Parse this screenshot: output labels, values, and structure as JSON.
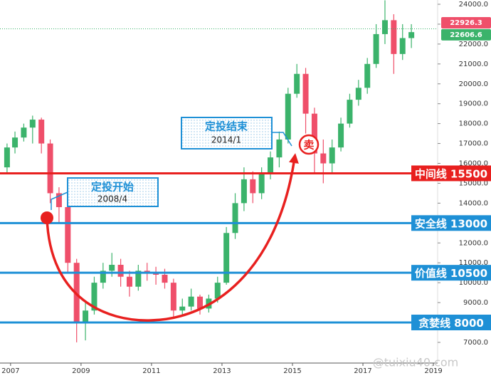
{
  "chart_data": {
    "type": "candlestick",
    "x": [
      2006.9,
      2007.125,
      2007.375,
      2007.625,
      2007.875,
      2008.125,
      2008.375,
      2008.625,
      2008.875,
      2009.125,
      2009.375,
      2009.625,
      2009.875,
      2010.125,
      2010.375,
      2010.625,
      2010.875,
      2011.125,
      2011.375,
      2011.625,
      2011.875,
      2012.125,
      2012.375,
      2012.625,
      2012.875,
      2013.125,
      2013.375,
      2013.625,
      2013.875,
      2014.125,
      2014.375,
      2014.625,
      2014.875,
      2015.125,
      2015.375,
      2015.625,
      2015.875,
      2016.125,
      2016.375,
      2016.625,
      2016.875,
      2017.125,
      2017.375,
      2017.625,
      2017.875,
      2018.125,
      2018.375
    ],
    "open": [
      15800,
      16800,
      17300,
      17800,
      18200,
      17000,
      14500,
      13800,
      11000,
      8000,
      8600,
      10000,
      10600,
      10900,
      10300,
      9800,
      10600,
      10500,
      10400,
      10000,
      8600,
      8800,
      9300,
      8700,
      9200,
      10000,
      12500,
      14000,
      15200,
      14500,
      15500,
      16300,
      17200,
      19500,
      20500,
      18500,
      16500,
      16000,
      16800,
      18000,
      19200,
      19800,
      21000,
      22500,
      23200,
      21500,
      22300
    ],
    "high": [
      17000,
      17600,
      18000,
      18400,
      18300,
      17200,
      14800,
      14000,
      11200,
      9000,
      10300,
      11000,
      11500,
      11200,
      10600,
      10900,
      11000,
      10800,
      10700,
      10200,
      9200,
      9700,
      9400,
      9400,
      10300,
      12800,
      14500,
      15800,
      15600,
      15800,
      16600,
      17600,
      19800,
      21000,
      20800,
      18800,
      17200,
      17200,
      18300,
      19500,
      20200,
      21300,
      23000,
      24200,
      23500,
      23000,
      23000
    ],
    "low": [
      15500,
      16500,
      17100,
      17000,
      16500,
      14000,
      13000,
      10500,
      7000,
      7100,
      8400,
      9700,
      10300,
      9800,
      9300,
      9600,
      10100,
      9900,
      9700,
      8200,
      8300,
      8600,
      8400,
      8500,
      9000,
      9900,
      12200,
      13600,
      14000,
      14200,
      15200,
      15800,
      17000,
      19300,
      17500,
      15500,
      15000,
      15500,
      16600,
      17800,
      18900,
      19500,
      20800,
      22000,
      20500,
      21200,
      21800
    ],
    "close": [
      16800,
      17300,
      17800,
      18200,
      17000,
      14500,
      13800,
      11000,
      8000,
      8600,
      10000,
      10600,
      10900,
      10300,
      9800,
      10600,
      10500,
      10400,
      10000,
      8600,
      8800,
      9300,
      8700,
      9200,
      10000,
      12500,
      14000,
      15200,
      14500,
      15500,
      16300,
      17200,
      19500,
      20500,
      18500,
      16500,
      16000,
      16800,
      18000,
      19200,
      19800,
      21000,
      22500,
      23200,
      21500,
      22300,
      22600
    ],
    "up_color": "#3bb36b",
    "down_color": "#ef4f6a",
    "xlim": [
      2006.7,
      2019.12
    ],
    "xticks": [
      2007,
      2009,
      2011,
      2013,
      2015,
      2017,
      2019
    ],
    "ylim": [
      5960,
      24215
    ],
    "yticks": [
      {
        "value": 7000,
        "label": "7000.0"
      },
      {
        "value": 8000,
        "label": "8000.0"
      },
      {
        "value": 9000,
        "label": "9000.0"
      },
      {
        "value": 10000,
        "label": "10000.0"
      },
      {
        "value": 11000,
        "label": "11000.0"
      },
      {
        "value": 12000,
        "label": "12000.0"
      },
      {
        "value": 13000,
        "label": "13000.0"
      },
      {
        "value": 14000,
        "label": "14000.0"
      },
      {
        "value": 15000,
        "label": "15000.0"
      },
      {
        "value": 16000,
        "label": "16000.0"
      },
      {
        "value": 17000,
        "label": "17000.0"
      },
      {
        "value": 18000,
        "label": "18000.0"
      },
      {
        "value": 19000,
        "label": "19000.0"
      },
      {
        "value": 20000,
        "label": "20000.0"
      },
      {
        "value": 21000,
        "label": "21000.0"
      },
      {
        "value": 22000,
        "label": "22000.0"
      },
      {
        "value": 23000,
        "label": "23000.0"
      },
      {
        "value": 24000,
        "label": "24000.0"
      }
    ],
    "levels": [
      {
        "name": "中间线",
        "value": 15500,
        "color": "#e8201f"
      },
      {
        "name": "安全线",
        "value": 13000,
        "color": "#1e90d6"
      },
      {
        "name": "价值线",
        "value": 10500,
        "color": "#1e90d6"
      },
      {
        "name": "贪婪线",
        "value": 8000,
        "color": "#1e90d6"
      }
    ],
    "price_tags": [
      {
        "value": 22926.3,
        "color": "#ef4f6a"
      },
      {
        "value": 22606.6,
        "color": "#3bb36b"
      }
    ],
    "annotations": [
      {
        "title": "定投开始",
        "date": "2008/4"
      },
      {
        "title": "定投结束",
        "date": "2014/1"
      }
    ],
    "sell_label": "卖",
    "watermark": "@tuixiu40.com"
  }
}
